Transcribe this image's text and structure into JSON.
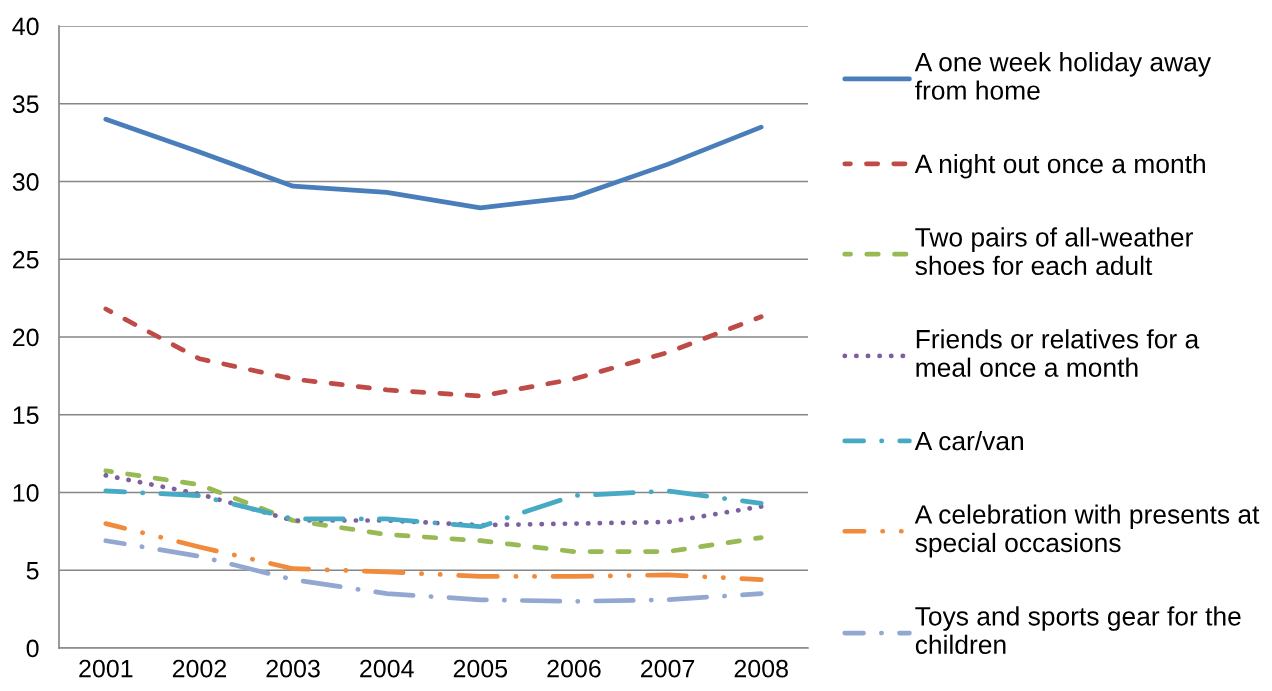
{
  "chart_data": {
    "type": "line",
    "categories": [
      "2001",
      "2002",
      "2003",
      "2004",
      "2005",
      "2006",
      "2007",
      "2008"
    ],
    "ylim": [
      0,
      40
    ],
    "yticks": [
      0,
      5,
      10,
      15,
      20,
      25,
      30,
      35,
      40
    ],
    "grid": "y",
    "legend": "right",
    "series": [
      {
        "name": "A one week holiday away\nfrom home",
        "color": "#4a7ebb",
        "line_style": "solid",
        "values": [
          34.0,
          31.9,
          29.7,
          29.3,
          28.3,
          29.0,
          31.1,
          33.5
        ]
      },
      {
        "name": "A night out once a month",
        "color": "#be4b48",
        "line_style": "dashed",
        "values": [
          21.8,
          18.6,
          17.3,
          16.6,
          16.2,
          17.3,
          19.0,
          21.3
        ]
      },
      {
        "name": "Two pairs of all-weather\nshoes for each adult",
        "color": "#98b954",
        "line_style": "dashed",
        "values": [
          11.4,
          10.5,
          8.2,
          7.3,
          6.9,
          6.2,
          6.2,
          7.1
        ]
      },
      {
        "name": "Friends or relatives for a\nmeal once a month",
        "color": "#7d60a0",
        "line_style": "dotted",
        "values": [
          11.1,
          9.9,
          8.2,
          8.2,
          7.9,
          8.0,
          8.1,
          9.1
        ]
      },
      {
        "name": "A car/van",
        "color": "#46aac5",
        "line_style": "dashdot",
        "values": [
          10.1,
          9.8,
          8.3,
          8.3,
          7.8,
          9.8,
          10.1,
          9.3
        ]
      },
      {
        "name": "A celebration with presents at\nspecial occasions",
        "color": "#f08a3c",
        "line_style": "dashdotdot",
        "values": [
          8.0,
          6.5,
          5.1,
          4.9,
          4.6,
          4.6,
          4.7,
          4.4
        ]
      },
      {
        "name": "Toys and sports gear for the\nchildren",
        "color": "#92a8d1",
        "line_style": "dashdot",
        "values": [
          6.9,
          5.9,
          4.4,
          3.5,
          3.1,
          3.0,
          3.1,
          3.5
        ]
      }
    ]
  }
}
